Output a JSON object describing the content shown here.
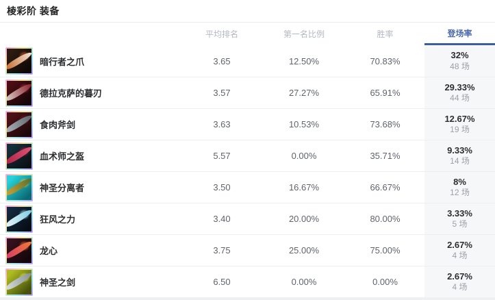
{
  "page": {
    "title": "棱彩阶 装备"
  },
  "colors": {
    "active_sort_text": "#4a69ad",
    "active_sort_underline": "#3c5d9e",
    "appearance_column_bg": "#f6f7f8",
    "prismatic_border": [
      "#f2a7dc",
      "#f6e59c",
      "#9be9f2",
      "#b9a0f2"
    ]
  },
  "table": {
    "headers": {
      "item": "",
      "avg_rank": "平均排名",
      "first_rate": "第一名比例",
      "win_rate": "胜率",
      "appearance_rate": "登场率"
    },
    "active_sort": "appearance_rate",
    "rows": [
      {
        "name": "暗行者之爪",
        "avg_rank": "3.65",
        "first_rate": "12.50%",
        "win_rate": "70.83%",
        "appearance_rate": "32%",
        "games": "48 场",
        "icon": {
          "base1": "#2c1c10",
          "base2": "#0e0906",
          "blade1": "#c96a2e",
          "blade2": "#efe7d8",
          "glow": "#d2542b"
        }
      },
      {
        "name": "德拉克萨的暮刃",
        "avg_rank": "3.57",
        "first_rate": "27.27%",
        "win_rate": "65.91%",
        "appearance_rate": "29.33%",
        "games": "44 场",
        "icon": {
          "base1": "#4a0d13",
          "base2": "#160507",
          "blade1": "#d8cfc9",
          "blade2": "#8c1f2a",
          "glow": "#a32330"
        }
      },
      {
        "name": "食肉斧剑",
        "avg_rank": "3.63",
        "first_rate": "10.53%",
        "win_rate": "73.68%",
        "appearance_rate": "12.67%",
        "games": "19 场",
        "icon": {
          "base1": "#4d1216",
          "base2": "#1c080a",
          "blade1": "#aab1b7",
          "blade2": "#5d666d",
          "glow": "#6e1c21"
        }
      },
      {
        "name": "血术师之盔",
        "avg_rank": "5.57",
        "first_rate": "0.00%",
        "win_rate": "35.71%",
        "appearance_rate": "9.33%",
        "games": "14 场",
        "icon": {
          "base1": "#15303a",
          "base2": "#0c1016",
          "blade1": "#b02447",
          "blade2": "#e05575",
          "glow": "#8e1e3c"
        }
      },
      {
        "name": "神圣分离者",
        "avg_rank": "3.50",
        "first_rate": "16.67%",
        "win_rate": "66.67%",
        "appearance_rate": "8%",
        "games": "12 场",
        "icon": {
          "base1": "#27d3da",
          "base2": "#0b6b74",
          "blade1": "#caa23a",
          "blade2": "#5a6e27",
          "glow": "#e0b84a"
        }
      },
      {
        "name": "狂风之力",
        "avg_rank": "3.40",
        "first_rate": "20.00%",
        "win_rate": "80.00%",
        "appearance_rate": "3.33%",
        "games": "5 场",
        "icon": {
          "base1": "#13283d",
          "base2": "#070d17",
          "blade1": "#e8f4f9",
          "blade2": "#7ecde4",
          "glow": "#9adcec"
        }
      },
      {
        "name": "龙心",
        "avg_rank": "3.75",
        "first_rate": "25.00%",
        "win_rate": "75.00%",
        "appearance_rate": "2.67%",
        "games": "4 场",
        "icon": {
          "base1": "#35101d",
          "base2": "#14060b",
          "blade1": "#d63b66",
          "blade2": "#f07a38",
          "glow": "#e8692c"
        }
      },
      {
        "name": "神圣之剑",
        "avg_rank": "6.50",
        "first_rate": "0.00%",
        "win_rate": "0.00%",
        "appearance_rate": "2.67%",
        "games": "4 场",
        "icon": {
          "base1": "#aebc21",
          "base2": "#47520c",
          "blade1": "#d9dedb",
          "blade2": "#868f94",
          "glow": "#d8e24c"
        }
      }
    ]
  }
}
